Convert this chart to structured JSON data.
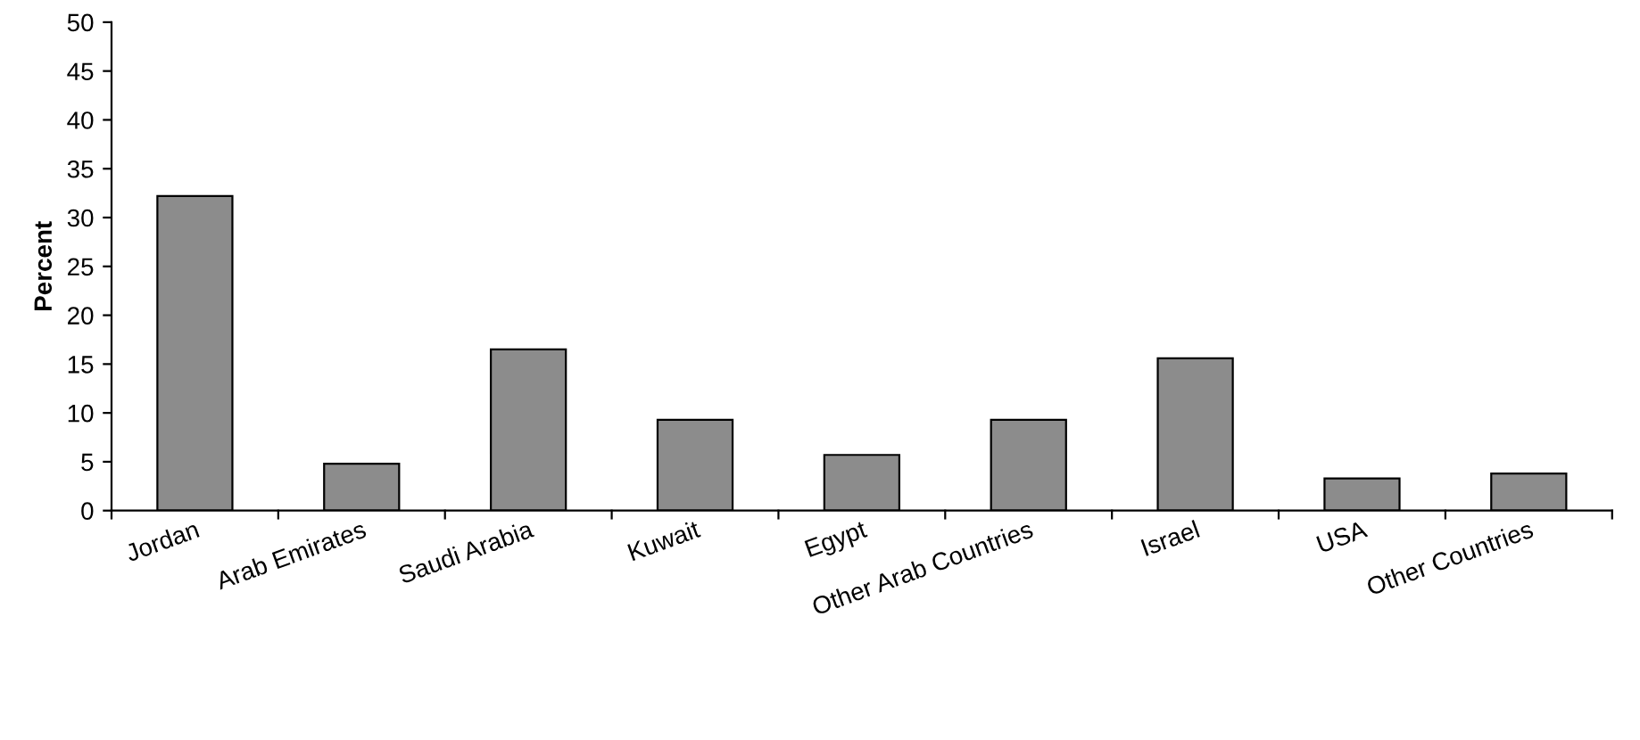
{
  "chart_data": {
    "type": "bar",
    "ylabel": "Percent",
    "categories": [
      "Jordan",
      "Arab Emirates",
      "Saudi Arabia",
      "Kuwait",
      "Egypt",
      "Other Arab Countries",
      "Israel",
      "USA",
      "Other Countries"
    ],
    "values": [
      32.2,
      4.8,
      16.5,
      9.3,
      5.7,
      9.3,
      15.6,
      3.3,
      3.8
    ],
    "color": "#8c8c8c",
    "ylim": [
      0,
      50
    ],
    "yticks": [
      0,
      5,
      10,
      15,
      20,
      25,
      30,
      35,
      40,
      45,
      50
    ],
    "grid": false,
    "legend": false
  }
}
